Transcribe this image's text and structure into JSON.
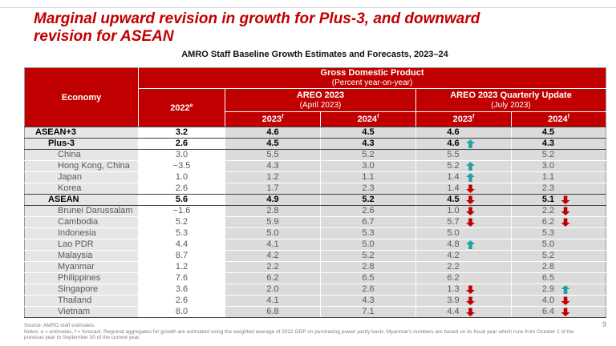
{
  "slide": {
    "title_line1": "Marginal upward revision in growth for Plus-3, and downward",
    "title_line2": "revision for ASEAN",
    "page_number": "9"
  },
  "table": {
    "title": "AMRO Staff Baseline Growth Estimates and Forecasts, 2023–24",
    "header": {
      "economy_label": "Economy",
      "gdp_title": "Gross Domestic Product",
      "gdp_subtitle": "(Percent year-on-year)",
      "year_2022": "2022",
      "sup_e": "e",
      "areo_april_line1": "AREO 2023",
      "areo_april_line2": "(April 2023)",
      "areo_july_line1": "AREO 2023 Quarterly Update",
      "areo_july_line2": "(July 2023)",
      "sub_2023": "2023",
      "sub_2024": "2024",
      "sup_f": "f"
    },
    "rows": [
      {
        "economy": "ASEAN+3",
        "level": 1,
        "bold": true,
        "v2022": "3.2",
        "apr2023": "4.6",
        "apr2024": "4.5",
        "jul2023": "4.6",
        "jul2023_arrow": "none",
        "jul2024": "4.5",
        "jul2024_arrow": "none"
      },
      {
        "economy": "Plus-3",
        "level": 2,
        "bold": true,
        "v2022": "2.6",
        "apr2023": "4.5",
        "apr2024": "4.3",
        "jul2023": "4.6",
        "jul2023_arrow": "up",
        "jul2024": "4.3",
        "jul2024_arrow": "none"
      },
      {
        "economy": "China",
        "level": 3,
        "bold": false,
        "v2022": "3.0",
        "apr2023": "5.5",
        "apr2024": "5.2",
        "jul2023": "5.5",
        "jul2023_arrow": "none",
        "jul2024": "5.2",
        "jul2024_arrow": "none"
      },
      {
        "economy": "Hong Kong, China",
        "level": 3,
        "bold": false,
        "v2022": "−3.5",
        "apr2023": "4.3",
        "apr2024": "3.0",
        "jul2023": "5.2",
        "jul2023_arrow": "up",
        "jul2024": "3.0",
        "jul2024_arrow": "none"
      },
      {
        "economy": "Japan",
        "level": 3,
        "bold": false,
        "v2022": "1.0",
        "apr2023": "1.2",
        "apr2024": "1.1",
        "jul2023": "1.4",
        "jul2023_arrow": "up",
        "jul2024": "1.1",
        "jul2024_arrow": "none"
      },
      {
        "economy": "Korea",
        "level": 3,
        "bold": false,
        "v2022": "2.6",
        "apr2023": "1.7",
        "apr2024": "2.3",
        "jul2023": "1.4",
        "jul2023_arrow": "down",
        "jul2024": "2.3",
        "jul2024_arrow": "none"
      },
      {
        "economy": "ASEAN",
        "level": 2,
        "bold": true,
        "v2022": "5.6",
        "apr2023": "4.9",
        "apr2024": "5.2",
        "jul2023": "4.5",
        "jul2023_arrow": "down",
        "jul2024": "5.1",
        "jul2024_arrow": "down"
      },
      {
        "economy": "Brunei Darussalam",
        "level": 3,
        "bold": false,
        "v2022": "−1.6",
        "apr2023": "2.8",
        "apr2024": "2.6",
        "jul2023": "1.0",
        "jul2023_arrow": "down",
        "jul2024": "2.2",
        "jul2024_arrow": "down"
      },
      {
        "economy": "Cambodia",
        "level": 3,
        "bold": false,
        "v2022": "5.2",
        "apr2023": "5.9",
        "apr2024": "6.7",
        "jul2023": "5.7",
        "jul2023_arrow": "down",
        "jul2024": "6.2",
        "jul2024_arrow": "down"
      },
      {
        "economy": "Indonesia",
        "level": 3,
        "bold": false,
        "v2022": "5.3",
        "apr2023": "5.0",
        "apr2024": "5.3",
        "jul2023": "5.0",
        "jul2023_arrow": "none",
        "jul2024": "5.3",
        "jul2024_arrow": "none"
      },
      {
        "economy": "Lao PDR",
        "level": 3,
        "bold": false,
        "v2022": "4.4",
        "apr2023": "4.1",
        "apr2024": "5.0",
        "jul2023": "4.8",
        "jul2023_arrow": "up",
        "jul2024": "5.0",
        "jul2024_arrow": "none"
      },
      {
        "economy": "Malaysia",
        "level": 3,
        "bold": false,
        "v2022": "8.7",
        "apr2023": "4.2",
        "apr2024": "5.2",
        "jul2023": "4.2",
        "jul2023_arrow": "none",
        "jul2024": "5.2",
        "jul2024_arrow": "none"
      },
      {
        "economy": "Myanmar",
        "level": 3,
        "bold": false,
        "v2022": "1.2",
        "apr2023": "2.2",
        "apr2024": "2.8",
        "jul2023": "2.2",
        "jul2023_arrow": "none",
        "jul2024": "2.8",
        "jul2024_arrow": "none"
      },
      {
        "economy": "Philippines",
        "level": 3,
        "bold": false,
        "v2022": "7.6",
        "apr2023": "6.2",
        "apr2024": "6.5",
        "jul2023": "6.2",
        "jul2023_arrow": "none",
        "jul2024": "6.5",
        "jul2024_arrow": "none"
      },
      {
        "economy": "Singapore",
        "level": 3,
        "bold": false,
        "v2022": "3.6",
        "apr2023": "2.0",
        "apr2024": "2.6",
        "jul2023": "1.3",
        "jul2023_arrow": "down",
        "jul2024": "2.9",
        "jul2024_arrow": "up"
      },
      {
        "economy": "Thailand",
        "level": 3,
        "bold": false,
        "v2022": "2.6",
        "apr2023": "4.1",
        "apr2024": "4.3",
        "jul2023": "3.9",
        "jul2023_arrow": "down",
        "jul2024": "4.0",
        "jul2024_arrow": "down"
      },
      {
        "economy": "Vietnam",
        "level": 3,
        "bold": false,
        "v2022": "8.0",
        "apr2023": "6.8",
        "apr2024": "7.1",
        "jul2023": "4.4",
        "jul2023_arrow": "down",
        "jul2024": "6.4",
        "jul2024_arrow": "down"
      }
    ]
  },
  "footer": {
    "source": "Source: AMRO staff estimates.",
    "notes": "Notes: e = estimates, f = forecast. Regional aggregates for growth are estimated using the weighted average of 2022 GDP on purchasing power parity basis. Myanmar's numbers are based on its fiscal year which runs from October 1 of the previous year to September 30 of the current year."
  },
  "colors": {
    "header_red": "#C00000",
    "title_red": "#C00000",
    "up_arrow": "#21A3A3",
    "down_arrow": "#C00000",
    "economy_cell_bg": "#E7E6E6",
    "forecast_cell_bg": "#DBDBDB",
    "country_text": "#595959"
  }
}
